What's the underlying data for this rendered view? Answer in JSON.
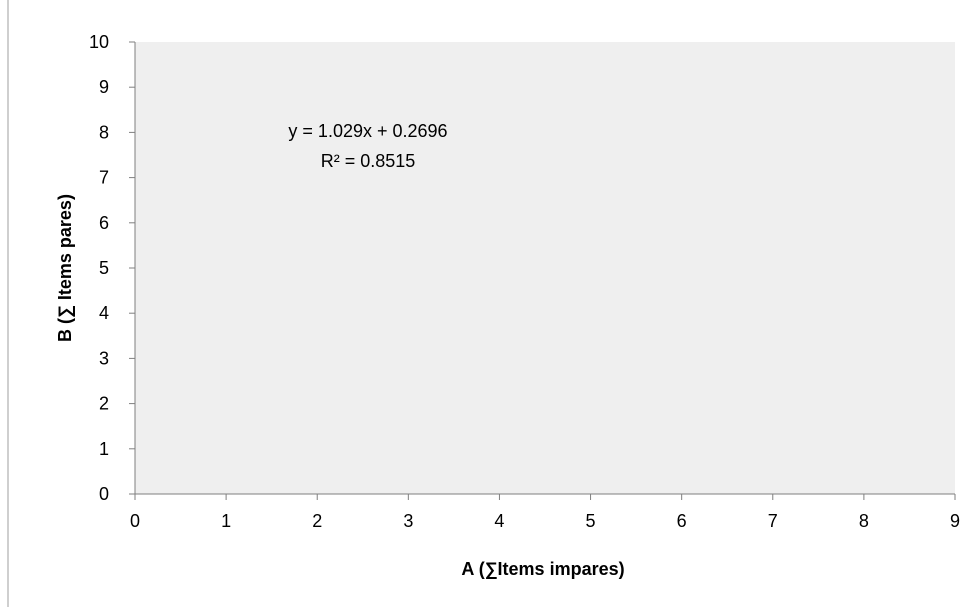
{
  "chart_data": {
    "type": "scatter",
    "title": "",
    "xlabel": "A (∑Items impares)",
    "ylabel": "B (∑ Items pares)",
    "xlim": [
      0,
      9
    ],
    "ylim": [
      0,
      10
    ],
    "x_ticks": [
      "0",
      "1",
      "2",
      "3",
      "4",
      "5",
      "6",
      "7",
      "8",
      "9"
    ],
    "y_ticks": [
      "0",
      "1",
      "2",
      "3",
      "4",
      "5",
      "6",
      "7",
      "8",
      "9",
      "10"
    ],
    "series": [],
    "grid": false,
    "plot_background": "#efefef",
    "annotations": {
      "equation": "y = 1.029x + 0.2696",
      "r_squared": "R² = 0.8515"
    }
  }
}
